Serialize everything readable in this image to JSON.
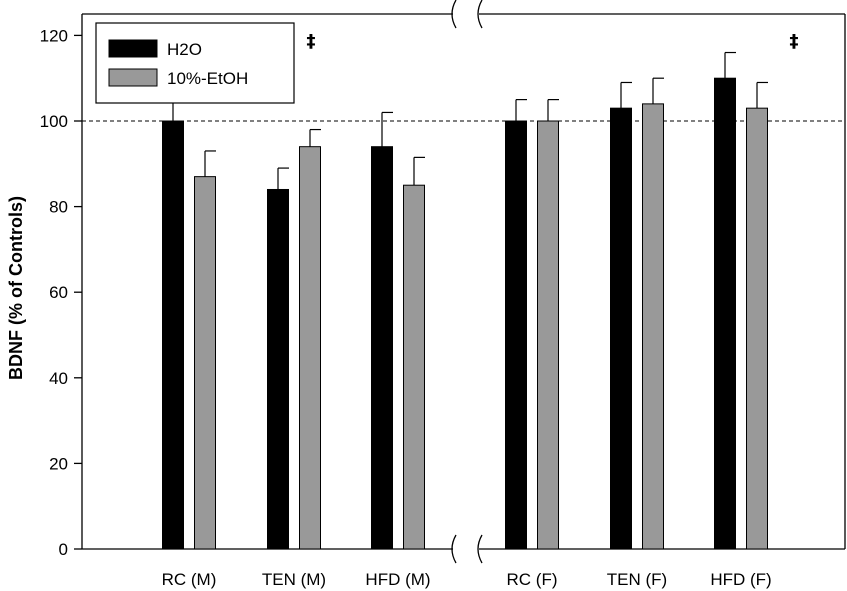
{
  "chart_data": {
    "type": "bar",
    "title": "",
    "xlabel": "",
    "ylabel": "BDNF (% of Controls)",
    "ylim": [
      0,
      125
    ],
    "yticks": [
      0,
      20,
      40,
      60,
      80,
      100,
      120
    ],
    "reference_line": 100,
    "axis_break": true,
    "legend_position": "top-left",
    "categories": [
      "RC (M)",
      "TEN (M)",
      "HFD (M)",
      "RC (F)",
      "TEN (F)",
      "HFD (F)"
    ],
    "series": [
      {
        "name": "H2O",
        "color": "#000000",
        "values": [
          100,
          84,
          94,
          100,
          103,
          110
        ],
        "errors": [
          5,
          5,
          8,
          5,
          6,
          6
        ]
      },
      {
        "name": "10%-EtOH",
        "color": "#999999",
        "values": [
          87,
          94,
          85,
          100,
          104,
          103
        ],
        "errors": [
          6,
          4,
          6.5,
          5,
          6,
          6
        ]
      }
    ],
    "annotations": [
      "‡",
      "‡"
    ]
  }
}
